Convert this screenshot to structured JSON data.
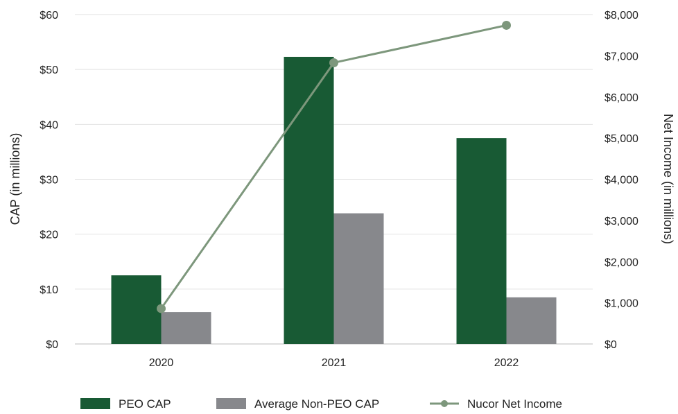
{
  "chart_data": {
    "type": "bar",
    "categories": [
      "2020",
      "2021",
      "2022"
    ],
    "series": [
      {
        "name": "PEO CAP",
        "values": [
          12.5,
          52.3,
          37.5
        ],
        "axis": "left",
        "kind": "bar",
        "color": "#185a34"
      },
      {
        "name": "Average Non-PEO CAP",
        "values": [
          5.8,
          23.8,
          8.5
        ],
        "axis": "left",
        "kind": "bar",
        "color": "#87888c"
      },
      {
        "name": "Nucor Net Income",
        "values": [
          860,
          6830,
          7740
        ],
        "axis": "right",
        "kind": "line",
        "color": "#7d977c"
      }
    ],
    "title": "",
    "ylabel": "CAP (in millions)",
    "y2label": "Net Income (in millions)",
    "ylim": [
      0,
      60
    ],
    "y2lim": [
      0,
      8000
    ],
    "yticks": [
      "$0",
      "$10",
      "$20",
      "$30",
      "$40",
      "$50",
      "$60"
    ],
    "y2ticks": [
      "$0",
      "$1,000",
      "$2,000",
      "$3,000",
      "$4,000",
      "$5,000",
      "$6,000",
      "$7,000",
      "$8,000"
    ],
    "grid": true,
    "legend": "bottom"
  }
}
